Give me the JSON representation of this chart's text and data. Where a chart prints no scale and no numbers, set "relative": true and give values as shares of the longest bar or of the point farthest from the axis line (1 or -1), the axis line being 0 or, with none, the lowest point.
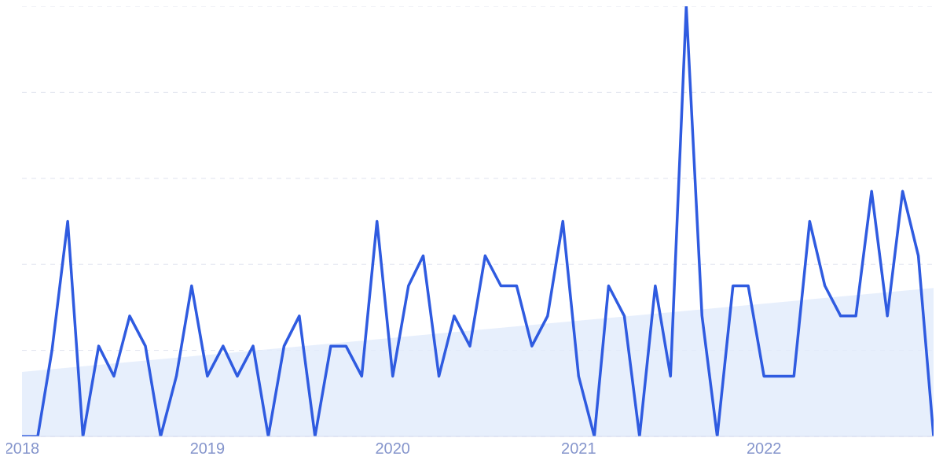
{
  "chart_data": {
    "type": "line",
    "relative": true,
    "grid": "y",
    "line_style": "solid",
    "marker": "none",
    "x": [
      "2018-01",
      "2018-02",
      "2018-03",
      "2018-04",
      "2018-05",
      "2018-06",
      "2018-07",
      "2018-08",
      "2018-09",
      "2018-10",
      "2018-11",
      "2018-12",
      "2019-01",
      "2019-02",
      "2019-03",
      "2019-04",
      "2019-05",
      "2019-06",
      "2019-07",
      "2019-08",
      "2019-09",
      "2019-10",
      "2019-11",
      "2019-12",
      "2020-01",
      "2020-02",
      "2020-03",
      "2020-04",
      "2020-05",
      "2020-06",
      "2020-07",
      "2020-08",
      "2020-09",
      "2020-10",
      "2020-11",
      "2020-12",
      "2021-01",
      "2021-02",
      "2021-03",
      "2021-04",
      "2021-05",
      "2021-06",
      "2021-07",
      "2021-08",
      "2021-09",
      "2021-10",
      "2021-11",
      "2021-12",
      "2022-01",
      "2022-02",
      "2022-03",
      "2022-04",
      "2022-05",
      "2022-06",
      "2022-07",
      "2022-08",
      "2022-09",
      "2022-10",
      "2022-11",
      "2022-12"
    ],
    "xlim": [
      "2018-01",
      "2022-12"
    ],
    "xticks": [
      "2018",
      "2019",
      "2020",
      "2021",
      "2022"
    ],
    "series": [
      {
        "type": "area",
        "color": "#e1ebfb",
        "x": [
          "2018-01",
          "2022-12"
        ],
        "values": [
          0.15,
          0.345
        ]
      },
      {
        "color": "#2f5be0",
        "values": [
          0,
          0,
          0.2,
          0.5,
          0,
          0.21,
          0.14,
          0.28,
          0.21,
          0,
          0.14,
          0.35,
          0.14,
          0.21,
          0.14,
          0.21,
          0,
          0.21,
          0.28,
          0,
          0.21,
          0.21,
          0.14,
          0.5,
          0.14,
          0.35,
          0.42,
          0.14,
          0.28,
          0.21,
          0.42,
          0.35,
          0.35,
          0.21,
          0.28,
          0.5,
          0.14,
          0,
          0.35,
          0.28,
          0,
          0.35,
          0.14,
          1,
          0.28,
          0,
          0.35,
          0.35,
          0.14,
          0.14,
          0.14,
          0.5,
          0.35,
          0.28,
          0.28,
          0.57,
          0.28,
          0.57,
          0.42,
          0
        ]
      }
    ]
  }
}
